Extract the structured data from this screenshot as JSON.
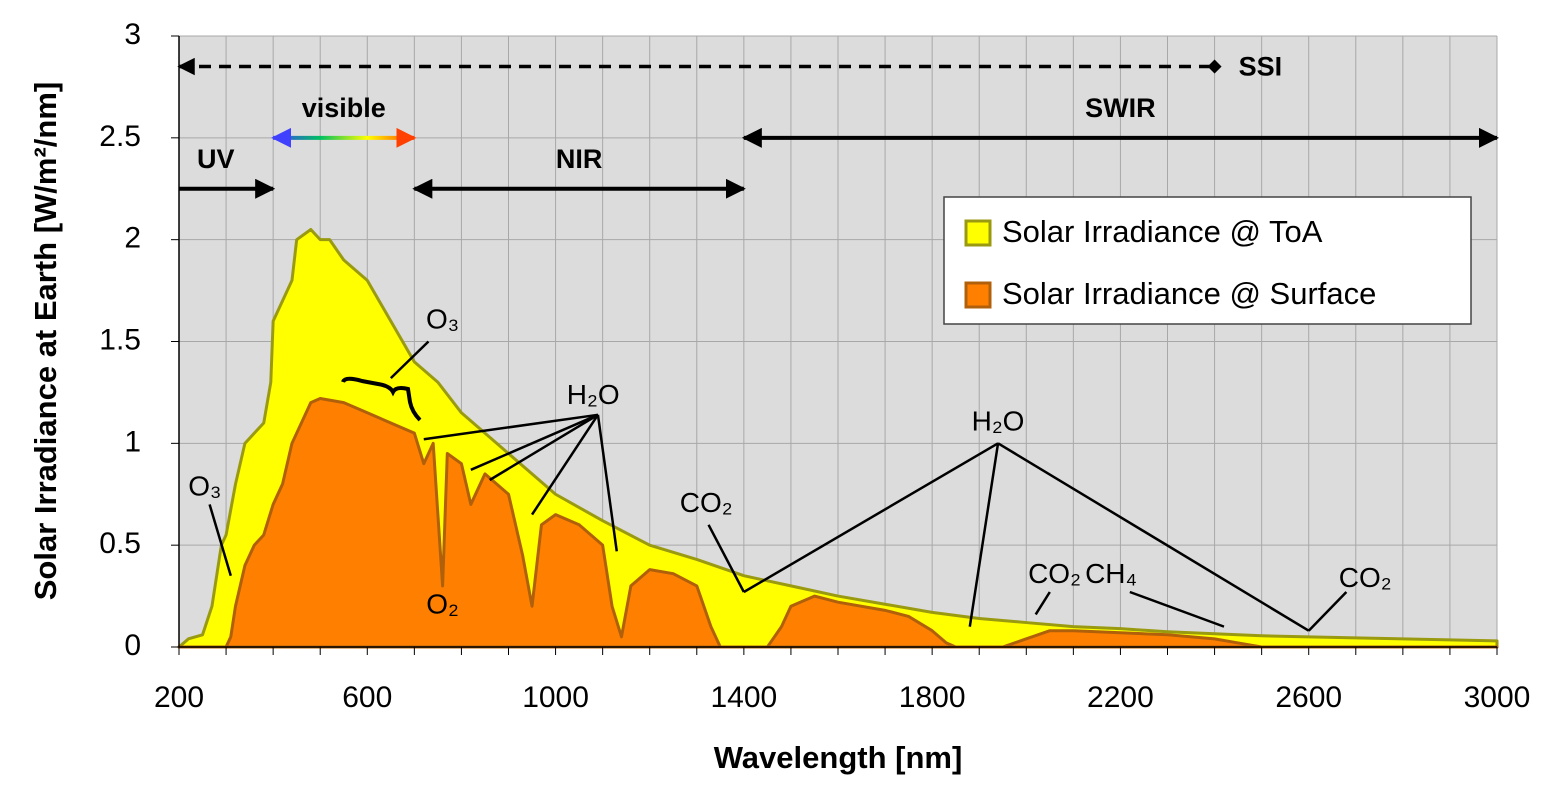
{
  "chart_data": {
    "type": "area",
    "x_label": "Wavelength [nm]",
    "y_label": "Solar Irradiance at Earth [W/m²/nm]",
    "xlim": [
      200,
      3000
    ],
    "ylim": [
      0,
      3
    ],
    "xticks": [
      200,
      600,
      1000,
      1400,
      1800,
      2200,
      2600,
      3000
    ],
    "x_grid": [
      200,
      300,
      400,
      500,
      600,
      700,
      800,
      900,
      1000,
      1100,
      1200,
      1300,
      1400,
      1500,
      1600,
      1700,
      1800,
      1900,
      2000,
      2100,
      2200,
      2300,
      2400,
      2500,
      2600,
      2700,
      2800,
      2900,
      3000
    ],
    "yticks": [
      0,
      0.5,
      1,
      1.5,
      2,
      2.5,
      3
    ],
    "grid": true,
    "legend": "upper right",
    "series": [
      {
        "name": "Solar Irradiance @ ToA",
        "color": "#ffff00",
        "edge": "#9a9a10",
        "x": [
          200,
          220,
          250,
          270,
          290,
          300,
          320,
          340,
          360,
          380,
          395,
          400,
          420,
          440,
          450,
          480,
          500,
          520,
          550,
          600,
          650,
          700,
          750,
          800,
          850,
          900,
          950,
          1000,
          1100,
          1200,
          1300,
          1400,
          1500,
          1600,
          1700,
          1800,
          1900,
          2000,
          2100,
          2200,
          2300,
          2400,
          2500,
          2600,
          2700,
          2800,
          2900,
          3000
        ],
        "values": [
          0,
          0.04,
          0.06,
          0.2,
          0.5,
          0.55,
          0.8,
          1.0,
          1.05,
          1.1,
          1.3,
          1.6,
          1.7,
          1.8,
          2.0,
          2.05,
          2.0,
          2.0,
          1.9,
          1.8,
          1.6,
          1.4,
          1.3,
          1.15,
          1.05,
          0.95,
          0.85,
          0.75,
          0.62,
          0.5,
          0.43,
          0.35,
          0.3,
          0.25,
          0.21,
          0.17,
          0.14,
          0.12,
          0.1,
          0.09,
          0.075,
          0.065,
          0.055,
          0.05,
          0.045,
          0.04,
          0.035,
          0.03
        ]
      },
      {
        "name": "Solar Irradiance @ Surface",
        "color": "#ff8000",
        "edge": "#b0600a",
        "x": [
          200,
          300,
          310,
          320,
          340,
          360,
          380,
          400,
          420,
          440,
          460,
          480,
          500,
          550,
          600,
          650,
          700,
          720,
          740,
          760,
          770,
          800,
          820,
          850,
          900,
          930,
          950,
          970,
          1000,
          1050,
          1100,
          1120,
          1140,
          1160,
          1200,
          1250,
          1300,
          1330,
          1350,
          1450,
          1480,
          1500,
          1550,
          1600,
          1700,
          1750,
          1800,
          1830,
          1850,
          1950,
          2000,
          2050,
          2100,
          2200,
          2300,
          2400,
          2450,
          2500,
          3000
        ],
        "values": [
          0,
          0,
          0.05,
          0.2,
          0.4,
          0.5,
          0.55,
          0.7,
          0.8,
          1.0,
          1.1,
          1.2,
          1.22,
          1.2,
          1.15,
          1.1,
          1.05,
          0.9,
          1.0,
          0.3,
          0.95,
          0.9,
          0.7,
          0.85,
          0.75,
          0.45,
          0.2,
          0.6,
          0.65,
          0.6,
          0.5,
          0.2,
          0.05,
          0.3,
          0.38,
          0.36,
          0.3,
          0.1,
          0,
          0,
          0.1,
          0.2,
          0.25,
          0.22,
          0.18,
          0.15,
          0.08,
          0.02,
          0,
          0,
          0.04,
          0.08,
          0.08,
          0.07,
          0.06,
          0.04,
          0.02,
          0,
          0
        ]
      }
    ],
    "ranges": [
      {
        "label": "SSI",
        "from": 200,
        "to": 2400,
        "y": 2.85,
        "dashed": true
      },
      {
        "label": "UV",
        "from": 200,
        "to": 400,
        "y": 2.25,
        "heads": "end"
      },
      {
        "label": "visible",
        "from": 400,
        "to": 700,
        "y": 2.5,
        "heads": "both",
        "colors": [
          "#4040ff",
          "#00c060",
          "#ffff00",
          "#ff4000"
        ]
      },
      {
        "label": "NIR",
        "from": 700,
        "to": 1400,
        "y": 2.25,
        "heads": "both"
      },
      {
        "label": "SWIR",
        "from": 1400,
        "to": 3000,
        "y": 2.5,
        "heads": "both"
      }
    ],
    "annotations": [
      {
        "text": "O₃",
        "x": 255,
        "y": 0.78,
        "from": [
          265,
          0.7
        ],
        "to": [
          [
            310,
            0.35
          ]
        ]
      },
      {
        "text": "O₃",
        "x": 760,
        "y": 1.6,
        "from": [
          730,
          1.5
        ],
        "to": [
          [
            650,
            1.32
          ]
        ]
      },
      {
        "text": "O₂",
        "x": 760,
        "y": 0.2
      },
      {
        "text": "H₂O",
        "x": 1080,
        "y": 1.23,
        "from": [
          1090,
          1.14
        ],
        "to": [
          [
            720,
            1.02
          ],
          [
            820,
            0.87
          ],
          [
            860,
            0.82
          ],
          [
            950,
            0.65
          ],
          [
            1130,
            0.47
          ]
        ]
      },
      {
        "text": "CO₂",
        "x": 1320,
        "y": 0.7,
        "from": [
          1325,
          0.6
        ],
        "to": [
          [
            1400,
            0.27
          ]
        ]
      },
      {
        "text": "H₂O",
        "x": 1940,
        "y": 1.1,
        "from": [
          1940,
          1.0
        ],
        "to": [
          [
            1400,
            0.27
          ],
          [
            1880,
            0.1
          ],
          [
            2600,
            0.08
          ]
        ]
      },
      {
        "text": "CO₂",
        "x": 2060,
        "y": 0.35,
        "from": [
          2050,
          0.27
        ],
        "to": [
          [
            2020,
            0.16
          ]
        ]
      },
      {
        "text": "CH₄",
        "x": 2180,
        "y": 0.35,
        "from": [
          2220,
          0.27
        ],
        "to": [
          [
            2420,
            0.1
          ]
        ]
      },
      {
        "text": "CO₂",
        "x": 2720,
        "y": 0.33,
        "from": [
          2680,
          0.27
        ],
        "to": [
          [
            2600,
            0.08
          ]
        ]
      }
    ]
  }
}
